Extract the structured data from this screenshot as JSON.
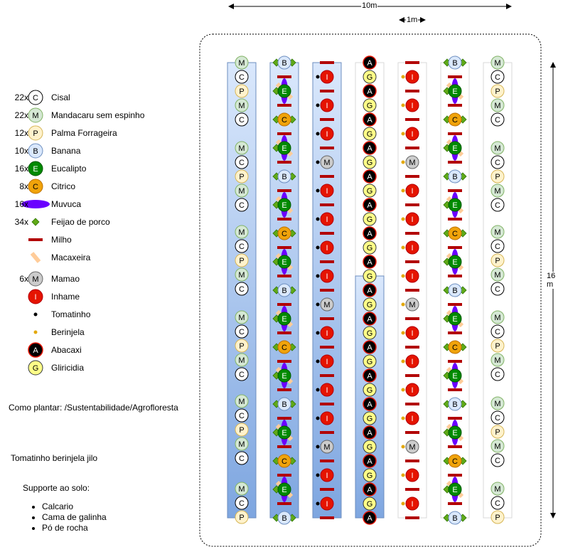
{
  "legend": [
    {
      "count": "22x",
      "label": "Cisal",
      "icon": "C"
    },
    {
      "count": "22x",
      "label": "Mandacaru sem espinho",
      "icon": "M"
    },
    {
      "count": "12x",
      "label": "Palma Forrageira",
      "icon": "P"
    },
    {
      "count": "10x",
      "label": "Banana",
      "icon": "B"
    },
    {
      "count": "16x",
      "label": "Eucalipto",
      "icon": "E"
    },
    {
      "count": "8x",
      "label": "Citrico",
      "icon": "Ci"
    },
    {
      "count": "16x",
      "label": "Muvuca",
      "icon": "muvuca"
    },
    {
      "count": "34x",
      "label": "Feijao de porco",
      "icon": "diamond"
    },
    {
      "count": "",
      "label": "Milho",
      "icon": "milho"
    },
    {
      "count": "",
      "label": "Macaxeira",
      "icon": "macaxeira"
    },
    {
      "count": "6x",
      "label": "Mamao",
      "icon": "Ma"
    },
    {
      "count": "",
      "label": "Inhame",
      "icon": "I"
    },
    {
      "count": "",
      "label": "Tomatinho",
      "icon": "tomatinho"
    },
    {
      "count": "",
      "label": "Berinjela",
      "icon": "berinjela"
    },
    {
      "count": "",
      "label": "Abacaxi",
      "icon": "A"
    },
    {
      "count": "",
      "label": "Gliricidia",
      "icon": "G"
    }
  ],
  "plant_letters": {
    "C": "C",
    "M": "M",
    "P": "P",
    "B": "B",
    "E": "E",
    "Ci": "C",
    "Ma": "M",
    "I": "I",
    "A": "A",
    "G": "G"
  },
  "notes": {
    "como_plantar": "Como plantar: /Sustentabilidade/Agrofloresta",
    "tomatinho": "Tomatinho berinjela jilo",
    "suporte_title": "Supporte ao solo:",
    "suporte_items": [
      "Calcario",
      "Cama de galinha",
      "Pó de rocha"
    ]
  },
  "dimensions": {
    "width_label": "10m",
    "step_label": "1m",
    "height_label": "16 m"
  },
  "colors": {
    "C": "#ffffff",
    "M": "#d5e8d4",
    "P": "#fff2cc",
    "B": "#dae8fc",
    "E": "#008a00",
    "Ci": "#f0a30a",
    "Ma": "#cccccc",
    "I": "#e51400",
    "A": "#000000",
    "G": "#ffff88",
    "muvuca": "#6a00ff",
    "diamond": "#60a917",
    "milho": "#b20000",
    "macaxeira": "#ffcc99",
    "tomatinho": "#000000",
    "berinjela": "#e3a80a",
    "bar_blue_light": "#dae8fc",
    "bar_blue_dark": "#7ea6e0"
  }
}
